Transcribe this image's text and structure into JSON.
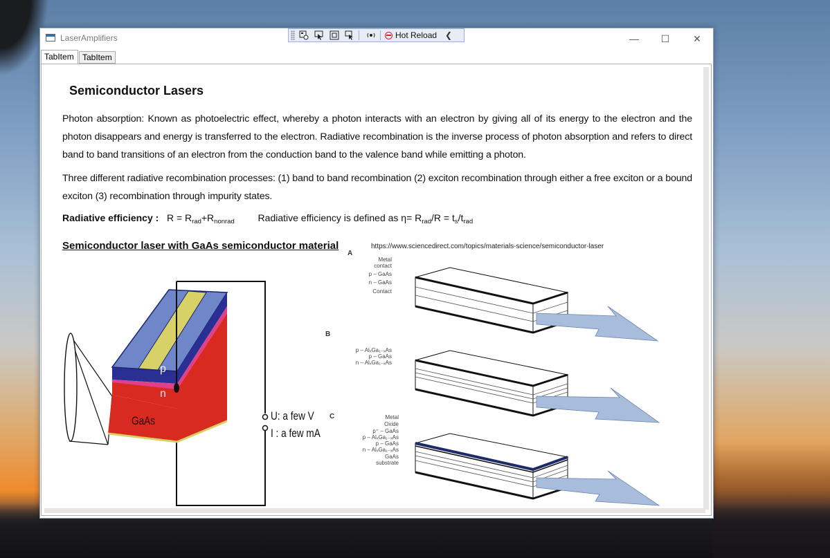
{
  "window": {
    "title": "LaserAmplifiers",
    "min_glyph": "—",
    "max_glyph": "☐",
    "close_glyph": "✕"
  },
  "devtoolbar": {
    "hot_reload_label": "Hot Reload",
    "collapse_glyph": "❮",
    "icons": [
      "live-visual-tree-icon",
      "select-element-icon",
      "display-adorners-icon",
      "track-focus-icon",
      "binding-failures-icon"
    ]
  },
  "tabs": [
    {
      "label": "TabItem"
    },
    {
      "label": "TabItem"
    }
  ],
  "doc": {
    "heading": "Semiconductor Lasers",
    "para1": "Photon absorption:  Known as photoelectric effect, whereby a photon interacts with an electron by giving all of its energy to the electron and the photon disappears and energy is transferred to the electron. Radiative recombination is the inverse process of photon absorption and refers to direct band to band transitions of an electron from the conduction band to the valence band while emitting a photon.",
    "para2": "Three different radiative recombination processes: (1) band to band recombination (2) exciton recombination through either a free exciton or a bound exciton (3) recombination through impurity states.",
    "eq_label": "Radiative efficiency :",
    "eq1_prefix": "R = R",
    "eq1_sub1": "rad",
    "eq1_mid": "+R",
    "eq1_sub2": "nonrad",
    "eq2_prefix": "Radiative efficiency is defined as  η= R",
    "eq2_sub1": "rad",
    "eq2_mid": "/R = t",
    "eq2_sub2": "s",
    "eq2_mid2": "/t",
    "eq2_sub3": "rad",
    "subheading": "Semiconductor laser with GaAs semiconductor material",
    "source_url": "https://www.sciencedirect.com/topics/materials-science/semiconductor-laser"
  },
  "figure_left": {
    "p_label": "p",
    "n_label": "n",
    "gaas_label": "GaAs",
    "voltage_label": "U: a few V",
    "current_label": "I : a few  mA"
  },
  "figure_right": {
    "label_a": "A",
    "label_b": "B",
    "label_c": "C",
    "a_layers": [
      "Metal",
      "contact",
      "p – GaAs",
      "n – GaAs",
      "Contact"
    ],
    "b_layers": [
      "p – AlₓGa₁₋ₓAs",
      "p – GaAs",
      "n – AlₓGa₁₋ₓAs"
    ],
    "c_layers": [
      "Metal",
      "Oxide",
      "p⁺ – GaAs",
      "p – AlₓGa₁₋ₓAs",
      "p – GaAs",
      "n – AlₓGa₁₋ₓAs",
      "GaAs",
      "substrate"
    ]
  }
}
